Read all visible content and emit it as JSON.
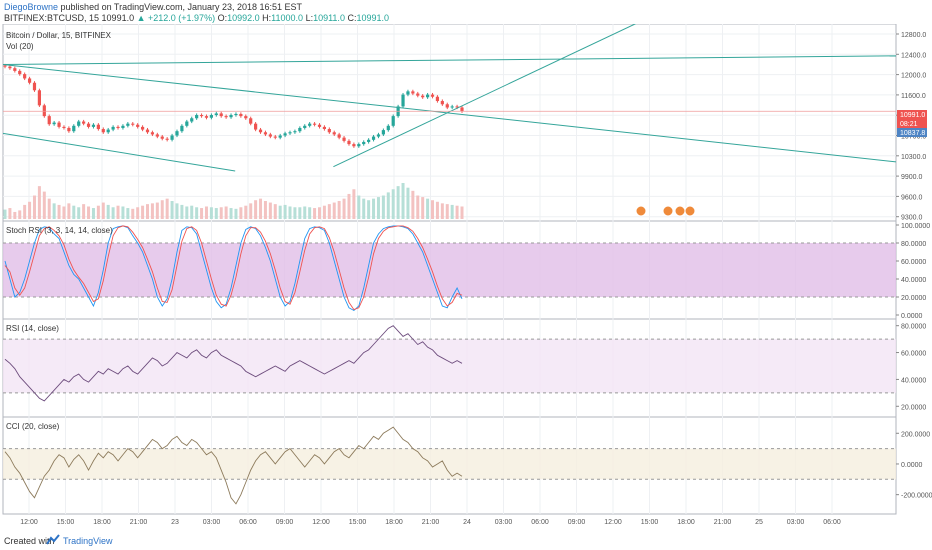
{
  "header": {
    "author": "DiegoBrowne",
    "published": "published on TradingView.com, January 23, 2018 16:51 EST",
    "symbol": "BITFINEX:BTCUSD, 15",
    "price": "10991.0",
    "change": "▲ +212.0 (+1.97%)",
    "ohlc": {
      "o_label": "O:",
      "o": "10992.0",
      "h_label": "H:",
      "h": "11000.0",
      "l_label": "L:",
      "l": "10911.0",
      "c_label": "C:",
      "c": "10991.0"
    }
  },
  "footer": {
    "created": "Created with",
    "brand": "TradingView"
  },
  "colors": {
    "up": "#26a69a",
    "down": "#ef5350",
    "trend": "#34a59a",
    "stoch_k": "#2196f3",
    "stoch_d": "#ef5350",
    "stoch_band": "#e1bee7",
    "rsi": "#6d4c7d",
    "rsi_band": "#f3e5f5",
    "cci": "#8d7b5c",
    "cci_band": "#f5efdf"
  },
  "chart_data": [
    {
      "type": "candlestick",
      "title": "Bitcoin / Dollar, 15, BITFINEX",
      "volume_label": "Vol (20)",
      "ylim": [
        9100,
        12500
      ],
      "y_ticks": [
        "12800.0",
        "12400.0",
        "12000.0",
        "11600.0",
        "11100.0",
        "10700.0",
        "10300.0",
        "9900.0",
        "9600.0",
        "9300.0"
      ],
      "price_labels": [
        {
          "text": "10991.0",
          "color": "#ef5350"
        },
        {
          "text": "08:21",
          "color": "#ef5350"
        },
        {
          "text": "10837.8",
          "color": "#4e84c4"
        }
      ],
      "x_ticks": [
        "12:00",
        "15:00",
        "18:00",
        "21:00",
        "23",
        "03:00",
        "06:00",
        "09:00",
        "12:00",
        "15:00",
        "18:00",
        "21:00",
        "24",
        "03:00",
        "06:00",
        "09:00",
        "12:00",
        "15:00",
        "18:00",
        "21:00",
        "25",
        "03:00",
        "06:00"
      ],
      "close_series": [
        11820,
        11790,
        11740,
        11680,
        11600,
        11520,
        11380,
        11100,
        10900,
        10750,
        10780,
        10700,
        10680,
        10620,
        10720,
        10800,
        10760,
        10700,
        10740,
        10660,
        10600,
        10650,
        10700,
        10680,
        10720,
        10760,
        10740,
        10700,
        10650,
        10600,
        10560,
        10520,
        10480,
        10460,
        10540,
        10620,
        10720,
        10800,
        10860,
        10920,
        10900,
        10870,
        10920,
        10950,
        10900,
        10880,
        10920,
        10940,
        10900,
        10860,
        10760,
        10650,
        10600,
        10560,
        10520,
        10500,
        10540,
        10580,
        10600,
        10620,
        10680,
        10720,
        10760,
        10740,
        10700,
        10660,
        10600,
        10560,
        10500,
        10440,
        10380,
        10340,
        10380,
        10420,
        10460,
        10520,
        10560,
        10640,
        10720,
        10900,
        11080,
        11300,
        11360,
        11320,
        11280,
        11250,
        11300,
        11260,
        11180,
        11120,
        11060,
        11080,
        11060,
        10991
      ],
      "volume_series": [
        120,
        140,
        90,
        110,
        180,
        220,
        300,
        420,
        350,
        260,
        200,
        180,
        160,
        200,
        170,
        150,
        190,
        160,
        140,
        170,
        210,
        180,
        150,
        170,
        160,
        140,
        130,
        150,
        170,
        190,
        200,
        210,
        240,
        260,
        230,
        200,
        180,
        160,
        170,
        150,
        140,
        160,
        150,
        140,
        150,
        160,
        140,
        130,
        150,
        170,
        200,
        240,
        260,
        230,
        210,
        190,
        170,
        180,
        160,
        150,
        150,
        160,
        150,
        140,
        150,
        170,
        190,
        210,
        230,
        260,
        320,
        380,
        300,
        260,
        240,
        260,
        280,
        300,
        340,
        380,
        420,
        460,
        400,
        360,
        300,
        280,
        260,
        240,
        220,
        200,
        190,
        180,
        170,
        160
      ],
      "trendlines": [
        {
          "from": [
            0,
            11860
          ],
          "to": [
            1,
            12020
          ]
        },
        {
          "from": [
            0,
            11860
          ],
          "to": [
            1,
            10050
          ]
        },
        {
          "from": [
            0,
            10580
          ],
          "to": [
            0.26,
            9880
          ]
        },
        {
          "from": [
            0.37,
            9960
          ],
          "to": [
            0.77,
            13100
          ]
        }
      ]
    },
    {
      "type": "line",
      "title": "Stoch RSI (3, 3, 14, 14, close)",
      "ylim": [
        0,
        100
      ],
      "y_ticks": [
        "100.0000",
        "80.0000",
        "60.0000",
        "40.0000",
        "20.0000",
        "0.0000"
      ],
      "band": [
        20,
        80
      ],
      "series": [
        {
          "values": [
            60,
            40,
            20,
            25,
            40,
            60,
            80,
            95,
            98,
            97,
            90,
            85,
            70,
            55,
            45,
            40,
            30,
            20,
            10,
            25,
            50,
            80,
            96,
            98,
            99,
            97,
            88,
            80,
            70,
            55,
            40,
            20,
            10,
            18,
            40,
            70,
            94,
            98,
            97,
            90,
            70,
            50,
            30,
            15,
            8,
            12,
            30,
            55,
            80,
            95,
            98,
            96,
            88,
            75,
            60,
            40,
            20,
            10,
            15,
            35,
            60,
            85,
            96,
            98,
            97,
            94,
            80,
            60,
            40,
            20,
            8,
            5,
            10,
            30,
            55,
            80,
            90,
            96,
            98,
            99,
            99,
            98,
            96,
            90,
            80,
            70,
            55,
            40,
            25,
            10,
            8,
            20,
            30,
            18
          ]
        },
        {
          "values": [
            55,
            48,
            30,
            22,
            30,
            48,
            68,
            88,
            96,
            98,
            94,
            88,
            78,
            62,
            50,
            42,
            35,
            25,
            15,
            18,
            38,
            65,
            88,
            97,
            99,
            98,
            92,
            84,
            75,
            62,
            48,
            30,
            15,
            14,
            28,
            55,
            82,
            96,
            98,
            94,
            80,
            60,
            40,
            22,
            12,
            10,
            22,
            42,
            68,
            88,
            97,
            97,
            92,
            82,
            68,
            50,
            30,
            15,
            12,
            25,
            48,
            72,
            90,
            97,
            98,
            96,
            86,
            70,
            50,
            30,
            14,
            6,
            8,
            20,
            42,
            68,
            85,
            93,
            97,
            98,
            99,
            99,
            97,
            93,
            85,
            75,
            62,
            48,
            32,
            18,
            10,
            14,
            24,
            22
          ]
        }
      ]
    },
    {
      "type": "line",
      "title": "RSI (14, close)",
      "ylim": [
        15,
        82
      ],
      "y_ticks": [
        "80.0000",
        "60.0000",
        "40.0000",
        "20.0000"
      ],
      "band": [
        30,
        70
      ],
      "series": [
        {
          "values": [
            55,
            52,
            48,
            42,
            38,
            34,
            30,
            26,
            24,
            28,
            32,
            36,
            40,
            38,
            42,
            44,
            40,
            38,
            42,
            46,
            44,
            48,
            46,
            44,
            48,
            50,
            46,
            44,
            48,
            52,
            56,
            54,
            50,
            52,
            56,
            60,
            58,
            56,
            60,
            62,
            58,
            56,
            60,
            62,
            58,
            56,
            54,
            52,
            50,
            46,
            44,
            42,
            44,
            46,
            48,
            50,
            48,
            46,
            50,
            52,
            54,
            52,
            50,
            48,
            46,
            44,
            46,
            48,
            50,
            52,
            54,
            52,
            56,
            60,
            62,
            66,
            70,
            74,
            78,
            80,
            76,
            72,
            74,
            70,
            66,
            68,
            64,
            62,
            58,
            56,
            54,
            52,
            54,
            52
          ]
        }
      ]
    },
    {
      "type": "line",
      "title": "CCI (20, close)",
      "ylim": [
        -300,
        280
      ],
      "y_ticks": [
        "200.0000",
        "0.0000",
        "-200.0000"
      ],
      "band": [
        -100,
        100
      ],
      "series": [
        {
          "values": [
            80,
            40,
            -20,
            -60,
            -120,
            -180,
            -220,
            -150,
            -80,
            -40,
            20,
            60,
            40,
            -20,
            30,
            60,
            20,
            -40,
            20,
            70,
            40,
            80,
            60,
            20,
            60,
            100,
            80,
            40,
            80,
            120,
            160,
            140,
            100,
            120,
            160,
            180,
            140,
            120,
            160,
            140,
            100,
            60,
            80,
            40,
            -40,
            -120,
            -220,
            -260,
            -200,
            -120,
            -40,
            20,
            60,
            80,
            40,
            0,
            40,
            80,
            100,
            60,
            20,
            -20,
            20,
            60,
            40,
            0,
            40,
            80,
            100,
            60,
            40,
            80,
            120,
            100,
            140,
            180,
            160,
            200,
            220,
            240,
            200,
            160,
            140,
            100,
            80,
            40,
            20,
            -20,
            0,
            20,
            -40,
            -80,
            -60,
            -80
          ]
        }
      ]
    }
  ]
}
